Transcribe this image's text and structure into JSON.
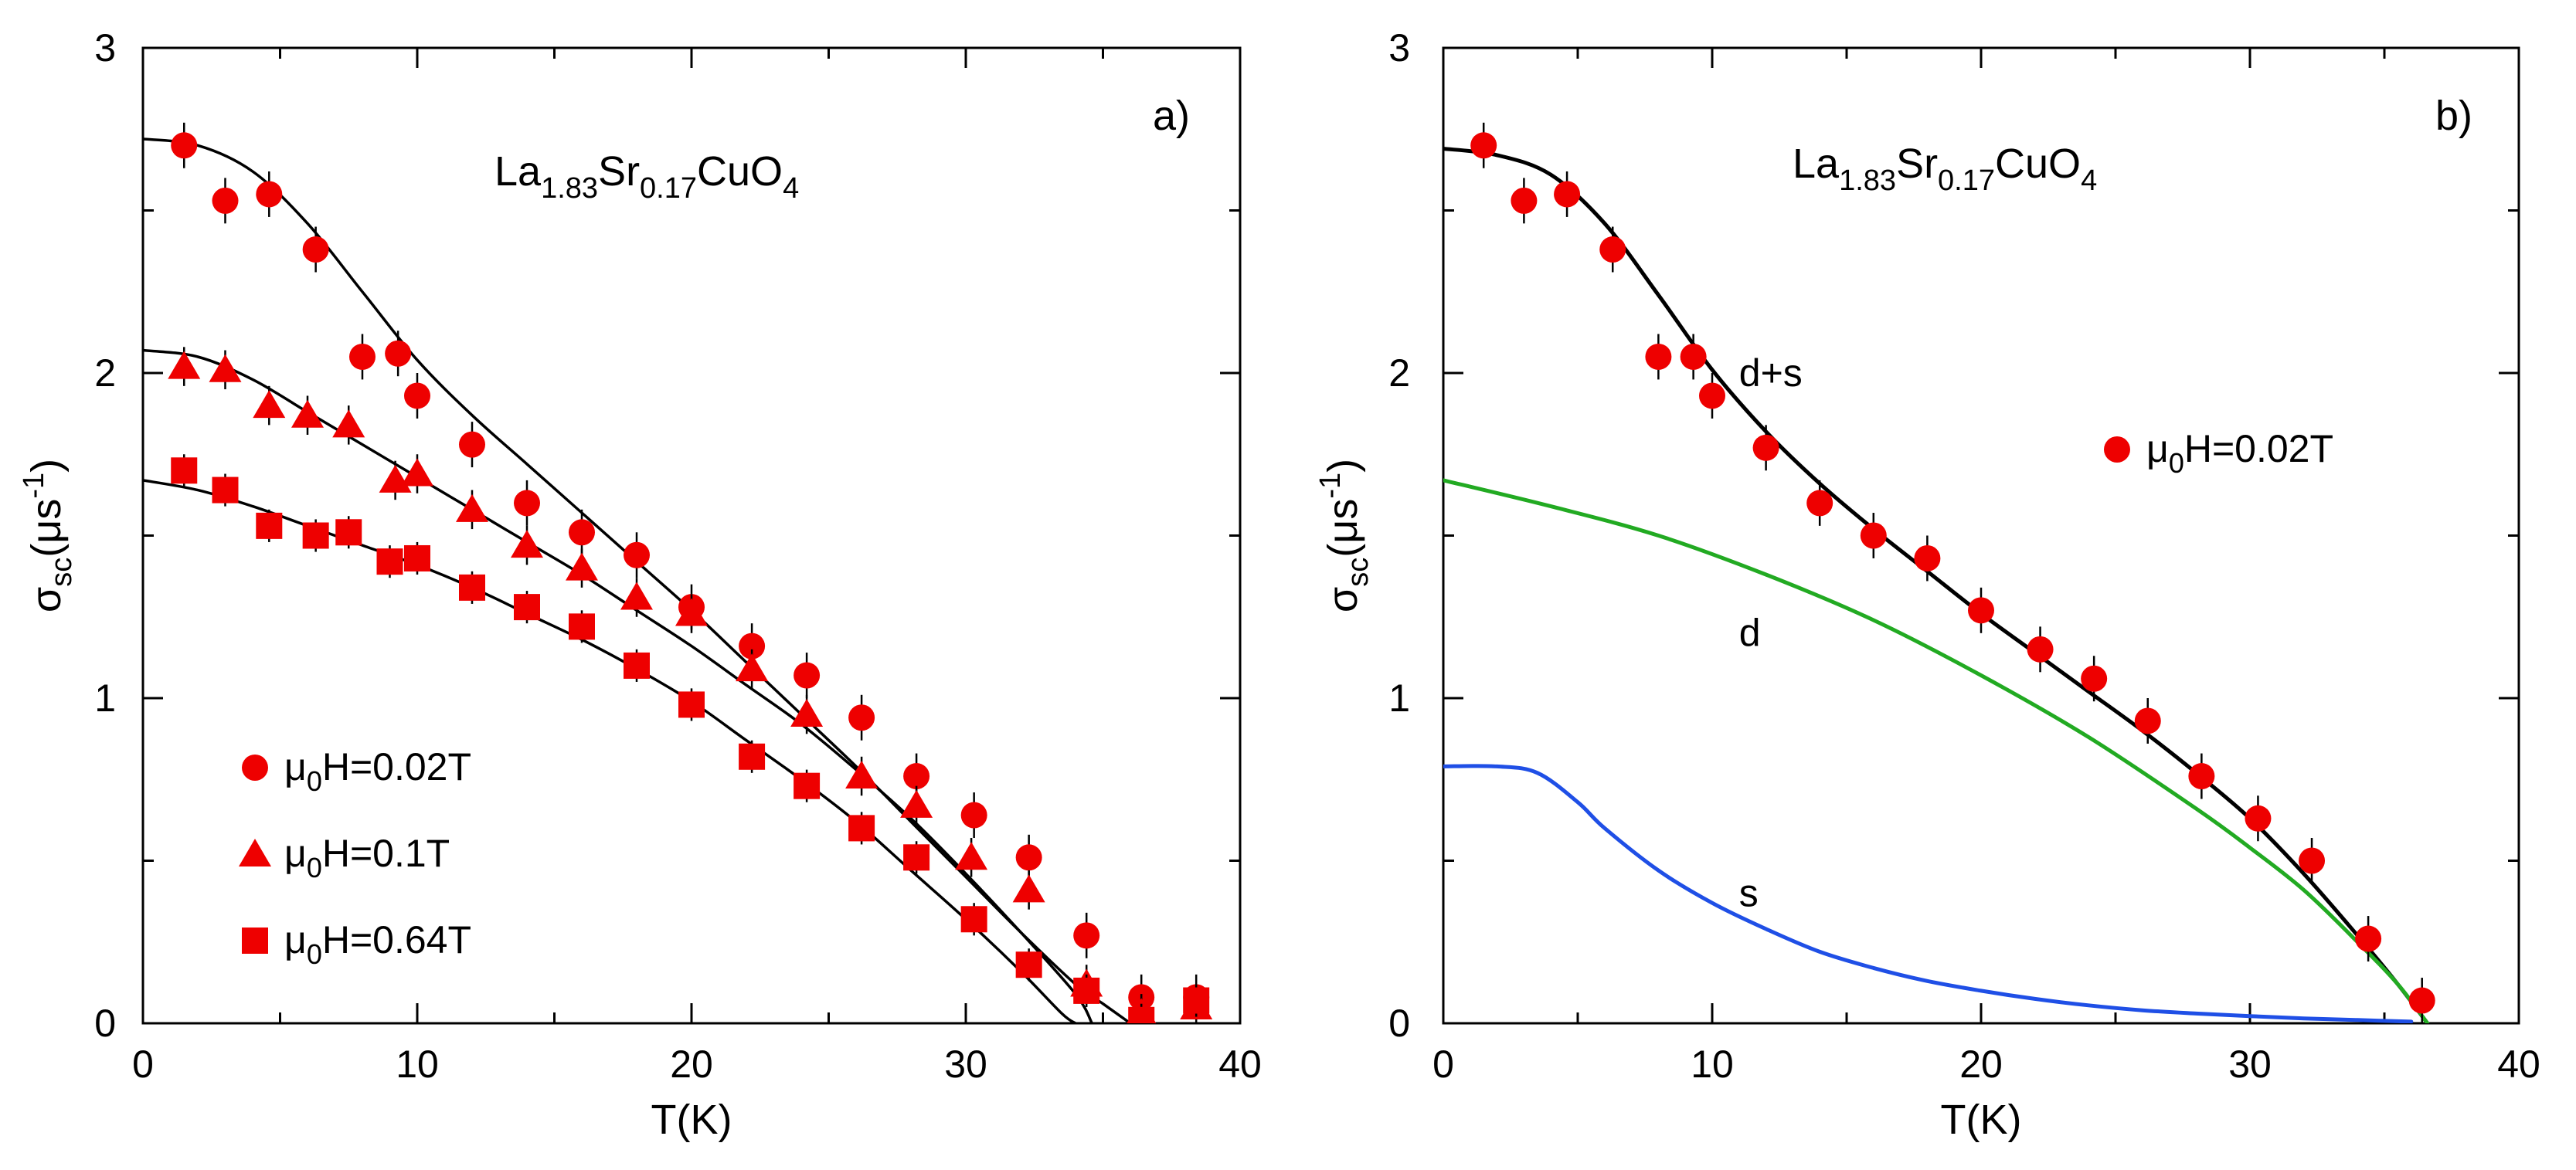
{
  "chart_data": [
    {
      "type": "scatter",
      "panel_label": "a)",
      "formula": {
        "base": "La",
        "sub1": "1.83",
        "mid": "Sr",
        "sub2": "0.17",
        "end": "CuO",
        "sub3": "4"
      },
      "xlabel": "T(K)",
      "ylabel": {
        "sym": "σ",
        "sub": "sc",
        "unit_open": "(μs",
        "sup": "-1",
        "unit_close": ")"
      },
      "xlim": [
        0,
        40
      ],
      "ylim": [
        0,
        3
      ],
      "x_ticks": [
        "0",
        "10",
        "20",
        "30",
        "40"
      ],
      "y_ticks": [
        "0",
        "1",
        "2",
        "3"
      ],
      "legend_position": "bottom-left",
      "series": [
        {
          "name": "μ0H=0.02T",
          "legend": {
            "mu": "μ",
            "sub": "0",
            "rest": "H=0.02T"
          },
          "marker": "circle",
          "color": "#ee0000",
          "x": [
            1.5,
            3.0,
            4.6,
            6.3,
            8.0,
            9.3,
            10.0,
            12.0,
            14.0,
            16.0,
            18.0,
            20.0,
            22.2,
            24.2,
            26.2,
            28.2,
            30.3,
            32.3,
            34.4,
            36.4,
            38.4
          ],
          "y": [
            2.7,
            2.53,
            2.55,
            2.38,
            2.05,
            2.06,
            1.93,
            1.78,
            1.6,
            1.51,
            1.44,
            1.28,
            1.16,
            1.07,
            0.94,
            0.76,
            0.64,
            0.51,
            0.27,
            0.08,
            0.08
          ],
          "err": 0.07,
          "fit": [
            [
              0,
              2.72
            ],
            [
              2,
              2.7
            ],
            [
              4,
              2.62
            ],
            [
              6,
              2.46
            ],
            [
              8,
              2.25
            ],
            [
              10,
              2.04
            ],
            [
              12,
              1.87
            ],
            [
              14,
              1.72
            ],
            [
              16,
              1.57
            ],
            [
              18,
              1.42
            ],
            [
              20,
              1.27
            ],
            [
              22,
              1.11
            ],
            [
              24,
              0.95
            ],
            [
              26,
              0.79
            ],
            [
              28,
              0.62
            ],
            [
              30,
              0.45
            ],
            [
              32,
              0.28
            ],
            [
              34,
              0.12
            ],
            [
              35,
              0.06
            ],
            [
              36,
              0.0
            ]
          ]
        },
        {
          "name": "μ0H=0.1T",
          "legend": {
            "mu": "μ",
            "sub": "0",
            "rest": "H=0.1T"
          },
          "marker": "triangle",
          "color": "#ee0000",
          "x": [
            1.5,
            3.0,
            4.6,
            6.0,
            7.5,
            9.2,
            10.0,
            12.0,
            14.0,
            16.0,
            18.0,
            20.0,
            22.2,
            24.2,
            26.2,
            28.2,
            30.2,
            32.3,
            34.4,
            36.4,
            38.4
          ],
          "y": [
            2.02,
            2.01,
            1.9,
            1.87,
            1.84,
            1.67,
            1.69,
            1.58,
            1.47,
            1.4,
            1.31,
            1.26,
            1.09,
            0.95,
            0.76,
            0.67,
            0.51,
            0.41,
            0.12,
            0.03,
            0.05
          ],
          "err": 0.06,
          "fit": [
            [
              0,
              2.07
            ],
            [
              2,
              2.05
            ],
            [
              4,
              1.98
            ],
            [
              6,
              1.88
            ],
            [
              8,
              1.78
            ],
            [
              10,
              1.68
            ],
            [
              12,
              1.58
            ],
            [
              14,
              1.48
            ],
            [
              16,
              1.38
            ],
            [
              18,
              1.27
            ],
            [
              20,
              1.16
            ],
            [
              22,
              1.04
            ],
            [
              24,
              0.92
            ],
            [
              26,
              0.78
            ],
            [
              28,
              0.63
            ],
            [
              30,
              0.46
            ],
            [
              32,
              0.28
            ],
            [
              34,
              0.09
            ],
            [
              34.6,
              0.0
            ]
          ]
        },
        {
          "name": "μ0H=0.64T",
          "legend": {
            "mu": "μ",
            "sub": "0",
            "rest": "H=0.64T"
          },
          "marker": "square",
          "color": "#ee0000",
          "x": [
            1.5,
            3.0,
            4.6,
            6.3,
            7.5,
            9.0,
            10.0,
            12.0,
            14.0,
            16.0,
            18.0,
            20.0,
            22.2,
            24.2,
            26.2,
            28.2,
            30.3,
            32.3,
            34.4,
            36.4,
            38.4
          ],
          "y": [
            1.7,
            1.64,
            1.53,
            1.5,
            1.51,
            1.42,
            1.43,
            1.34,
            1.28,
            1.22,
            1.1,
            0.98,
            0.82,
            0.73,
            0.6,
            0.51,
            0.32,
            0.18,
            0.1,
            0.01,
            0.07
          ],
          "err": 0.05,
          "fit": [
            [
              0,
              1.67
            ],
            [
              2,
              1.64
            ],
            [
              4,
              1.59
            ],
            [
              6,
              1.53
            ],
            [
              8,
              1.47
            ],
            [
              10,
              1.41
            ],
            [
              12,
              1.34
            ],
            [
              14,
              1.26
            ],
            [
              16,
              1.18
            ],
            [
              18,
              1.09
            ],
            [
              20,
              0.99
            ],
            [
              22,
              0.87
            ],
            [
              24,
              0.75
            ],
            [
              26,
              0.62
            ],
            [
              28,
              0.47
            ],
            [
              30,
              0.32
            ],
            [
              32,
              0.16
            ],
            [
              33.5,
              0.03
            ],
            [
              34,
              0.0
            ]
          ]
        }
      ]
    },
    {
      "type": "scatter",
      "panel_label": "b)",
      "formula": {
        "base": "La",
        "sub1": "1.83",
        "mid": "Sr",
        "sub2": "0.17",
        "end": "CuO",
        "sub3": "4"
      },
      "xlabel": "T(K)",
      "ylabel": {
        "sym": "σ",
        "sub": "sc",
        "unit_open": "(μs",
        "sup": "-1",
        "unit_close": ")"
      },
      "xlim": [
        0,
        40
      ],
      "ylim": [
        0,
        3
      ],
      "x_ticks": [
        "0",
        "10",
        "20",
        "30",
        "40"
      ],
      "y_ticks": [
        "0",
        "1",
        "2",
        "3"
      ],
      "legend_position": "right",
      "series": [
        {
          "name": "μ0H=0.02T",
          "legend": {
            "mu": "μ",
            "sub": "0",
            "rest": "H=0.02T"
          },
          "marker": "circle",
          "color": "#ee0000",
          "x": [
            1.5,
            3.0,
            4.6,
            6.3,
            8.0,
            9.3,
            10.0,
            12.0,
            14.0,
            16.0,
            18.0,
            20.0,
            22.2,
            24.2,
            26.2,
            28.2,
            30.3,
            32.3,
            34.4,
            36.4
          ],
          "y": [
            2.7,
            2.53,
            2.55,
            2.38,
            2.05,
            2.05,
            1.93,
            1.77,
            1.6,
            1.5,
            1.43,
            1.27,
            1.15,
            1.06,
            0.93,
            0.76,
            0.63,
            0.5,
            0.26,
            0.07
          ],
          "err": 0.07
        }
      ],
      "lines": [
        {
          "name": "d+s",
          "label": "d+s",
          "color": "#000000",
          "points": [
            [
              0,
              2.69
            ],
            [
              2,
              2.67
            ],
            [
              4,
              2.61
            ],
            [
              6,
              2.46
            ],
            [
              8,
              2.24
            ],
            [
              10,
              2.01
            ],
            [
              12,
              1.82
            ],
            [
              14,
              1.66
            ],
            [
              16,
              1.52
            ],
            [
              18,
              1.39
            ],
            [
              20,
              1.26
            ],
            [
              22,
              1.14
            ],
            [
              24,
              1.02
            ],
            [
              26,
              0.9
            ],
            [
              28,
              0.77
            ],
            [
              30,
              0.63
            ],
            [
              32,
              0.46
            ],
            [
              34,
              0.27
            ],
            [
              35.5,
              0.12
            ],
            [
              36.6,
              0.0
            ]
          ]
        },
        {
          "name": "d",
          "label": "d",
          "color": "#22aa22",
          "points": [
            [
              0,
              1.67
            ],
            [
              4,
              1.59
            ],
            [
              8,
              1.5
            ],
            [
              12,
              1.38
            ],
            [
              16,
              1.24
            ],
            [
              20,
              1.07
            ],
            [
              24,
              0.88
            ],
            [
              28,
              0.66
            ],
            [
              30,
              0.54
            ],
            [
              32,
              0.41
            ],
            [
              34,
              0.25
            ],
            [
              35.5,
              0.12
            ],
            [
              36.6,
              0.0
            ]
          ]
        },
        {
          "name": "s",
          "label": "s",
          "color": "#1f4fe6",
          "points": [
            [
              0,
              0.79
            ],
            [
              2,
              0.79
            ],
            [
              3.5,
              0.77
            ],
            [
              5,
              0.68
            ],
            [
              6,
              0.6
            ],
            [
              8,
              0.47
            ],
            [
              10,
              0.37
            ],
            [
              12,
              0.29
            ],
            [
              14,
              0.22
            ],
            [
              16,
              0.17
            ],
            [
              18,
              0.13
            ],
            [
              20,
              0.1
            ],
            [
              22,
              0.075
            ],
            [
              24,
              0.055
            ],
            [
              26,
              0.04
            ],
            [
              28,
              0.03
            ],
            [
              30,
              0.022
            ],
            [
              32,
              0.015
            ],
            [
              34,
              0.01
            ],
            [
              36,
              0.005
            ]
          ]
        }
      ]
    }
  ]
}
